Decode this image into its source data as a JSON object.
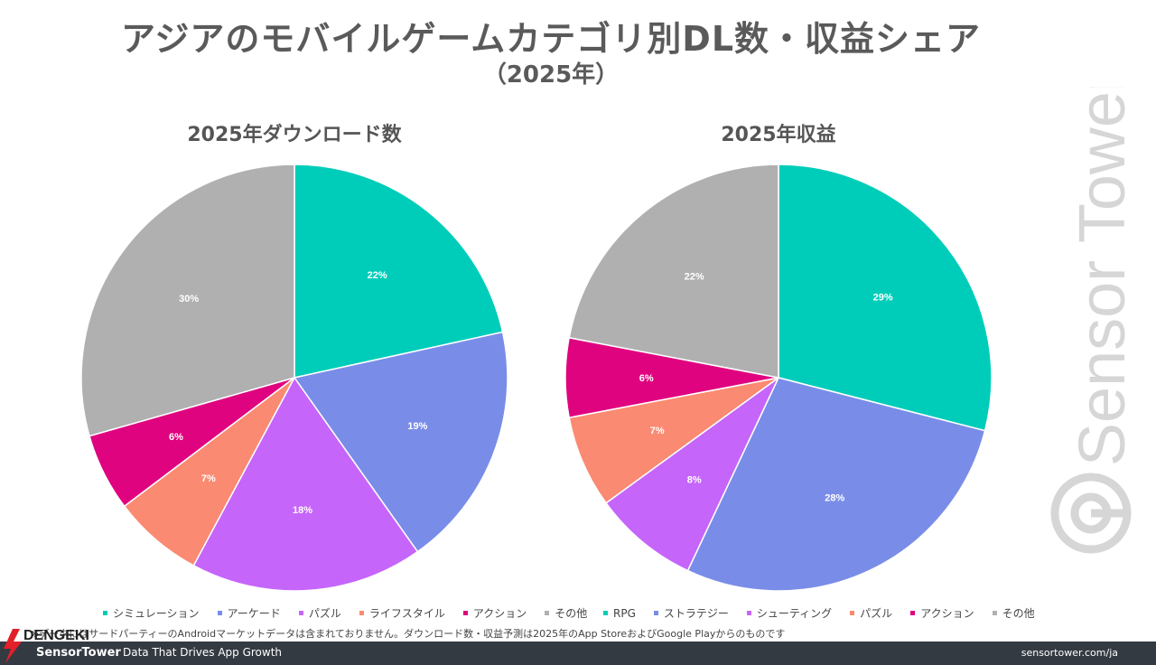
{
  "title": "アジアのモバイルゲームカテゴリ別DL数・収益シェア",
  "subtitle": "（2025年）",
  "watermark": "Sensor Tower",
  "chart_data": [
    {
      "type": "pie",
      "title": "2025年ダウンロード数",
      "labels": [
        "シミュレーション",
        "アーケード",
        "パズル",
        "ライフスタイル",
        "アクション",
        "その他"
      ],
      "values": [
        22,
        19,
        18,
        7,
        6,
        30
      ],
      "value_labels": [
        "22%",
        "19%",
        "18%",
        "7%",
        "6%",
        "30%"
      ],
      "colors": [
        "#00cdb9",
        "#798de8",
        "#c665fa",
        "#fb8a72",
        "#e0037f",
        "#b0b0b0"
      ],
      "legend": "bottom"
    },
    {
      "type": "pie",
      "title": "2025年収益",
      "labels": [
        "RPG",
        "ストラテジー",
        "シューティング",
        "パズル",
        "アクション",
        "その他"
      ],
      "values": [
        29,
        28,
        8,
        7,
        6,
        22
      ],
      "value_labels": [
        "29%",
        "28%",
        "8%",
        "7%",
        "6%",
        "22%"
      ],
      "colors": [
        "#00cdb9",
        "#798de8",
        "#c665fa",
        "#fb8a72",
        "#e0037f",
        "#b0b0b0"
      ],
      "legend": "bottom"
    }
  ],
  "footnote": "※データにはサードパーティーのAndroidマーケットデータは含まれておりません。ダウンロード数・収益予測は2025年のApp StoreおよびGoogle Playからのものです",
  "footer": {
    "brand": "SensorTower",
    "tagline": "Data That Drives App Growth",
    "url": "sensortower.com/ja"
  },
  "logo_text": "DENGEKI"
}
